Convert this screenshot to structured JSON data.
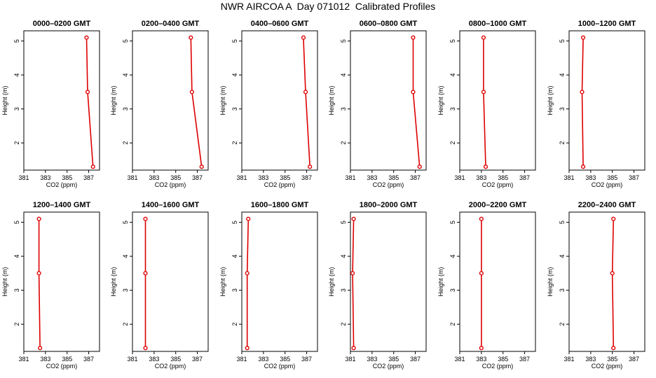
{
  "title": "NWR AIRCOA A  Day 071012  Calibrated Profiles",
  "colors": {
    "series": "#dd0000",
    "frame": "#000000"
  },
  "chart_data": [
    {
      "type": "line",
      "title": "0000–0200 GMT",
      "xlabel": "CO2 (ppm)",
      "ylabel": "Height (m)",
      "xlim": [
        381,
        388
      ],
      "ylim": [
        1.2,
        5.3
      ],
      "xticks": [
        "381",
        "383",
        "385",
        "387"
      ],
      "yticks": [
        "2",
        "3",
        "4",
        "5"
      ],
      "points": [
        {
          "x": 386.8,
          "y": 5.1
        },
        {
          "x": 386.9,
          "y": 3.5
        },
        {
          "x": 387.4,
          "y": 1.3
        }
      ]
    },
    {
      "type": "line",
      "title": "0200–0400 GMT",
      "xlabel": "CO2 (ppm)",
      "ylabel": "Height (m)",
      "xlim": [
        381,
        388
      ],
      "ylim": [
        1.2,
        5.3
      ],
      "xticks": [
        "381",
        "383",
        "385",
        "387"
      ],
      "yticks": [
        "2",
        "3",
        "4",
        "5"
      ],
      "points": [
        {
          "x": 386.4,
          "y": 5.1
        },
        {
          "x": 386.5,
          "y": 3.5
        },
        {
          "x": 387.4,
          "y": 1.3
        }
      ]
    },
    {
      "type": "line",
      "title": "0400–0600 GMT",
      "xlabel": "CO2 (ppm)",
      "ylabel": "Height (m)",
      "xlim": [
        381,
        388
      ],
      "ylim": [
        1.2,
        5.3
      ],
      "xticks": [
        "381",
        "383",
        "385",
        "387"
      ],
      "yticks": [
        "2",
        "3",
        "4",
        "5"
      ],
      "points": [
        {
          "x": 386.7,
          "y": 5.1
        },
        {
          "x": 386.9,
          "y": 3.5
        },
        {
          "x": 387.3,
          "y": 1.3
        }
      ]
    },
    {
      "type": "line",
      "title": "0600–0800 GMT",
      "xlabel": "CO2 (ppm)",
      "ylabel": "Height (m)",
      "xlim": [
        381,
        388
      ],
      "ylim": [
        1.2,
        5.3
      ],
      "xticks": [
        "381",
        "383",
        "385",
        "387"
      ],
      "yticks": [
        "2",
        "3",
        "4",
        "5"
      ],
      "points": [
        {
          "x": 386.8,
          "y": 5.1
        },
        {
          "x": 386.8,
          "y": 3.5
        },
        {
          "x": 387.4,
          "y": 1.3
        }
      ]
    },
    {
      "type": "line",
      "title": "0800–1000 GMT",
      "xlabel": "CO2 (ppm)",
      "ylabel": "Height (m)",
      "xlim": [
        381,
        388
      ],
      "ylim": [
        1.2,
        5.3
      ],
      "xticks": [
        "381",
        "383",
        "385",
        "387"
      ],
      "yticks": [
        "2",
        "3",
        "4",
        "5"
      ],
      "points": [
        {
          "x": 383.2,
          "y": 5.1
        },
        {
          "x": 383.2,
          "y": 3.5
        },
        {
          "x": 383.4,
          "y": 1.3
        }
      ]
    },
    {
      "type": "line",
      "title": "1000–1200 GMT",
      "xlabel": "CO2 (ppm)",
      "ylabel": "Height (m)",
      "xlim": [
        381,
        388
      ],
      "ylim": [
        1.2,
        5.3
      ],
      "xticks": [
        "381",
        "383",
        "385",
        "387"
      ],
      "yticks": [
        "2",
        "3",
        "4",
        "5"
      ],
      "points": [
        {
          "x": 382.3,
          "y": 5.1
        },
        {
          "x": 382.2,
          "y": 3.5
        },
        {
          "x": 382.3,
          "y": 1.3
        }
      ]
    },
    {
      "type": "line",
      "title": "1200–1400 GMT",
      "xlabel": "CO2 (ppm)",
      "ylabel": "Height (m)",
      "xlim": [
        381,
        388
      ],
      "ylim": [
        1.2,
        5.3
      ],
      "xticks": [
        "381",
        "383",
        "385",
        "387"
      ],
      "yticks": [
        "2",
        "3",
        "4",
        "5"
      ],
      "points": [
        {
          "x": 382.4,
          "y": 5.1
        },
        {
          "x": 382.4,
          "y": 3.5
        },
        {
          "x": 382.5,
          "y": 1.3
        }
      ]
    },
    {
      "type": "line",
      "title": "1400–1600 GMT",
      "xlabel": "CO2 (ppm)",
      "ylabel": "Height (m)",
      "xlim": [
        381,
        388
      ],
      "ylim": [
        1.2,
        5.3
      ],
      "xticks": [
        "381",
        "383",
        "385",
        "387"
      ],
      "yticks": [
        "2",
        "3",
        "4",
        "5"
      ],
      "points": [
        {
          "x": 382.2,
          "y": 5.1
        },
        {
          "x": 382.2,
          "y": 3.5
        },
        {
          "x": 382.2,
          "y": 1.3
        }
      ]
    },
    {
      "type": "line",
      "title": "1600–1800 GMT",
      "xlabel": "CO2 (ppm)",
      "ylabel": "Height (m)",
      "xlim": [
        381,
        388
      ],
      "ylim": [
        1.2,
        5.3
      ],
      "xticks": [
        "381",
        "383",
        "385",
        "387"
      ],
      "yticks": [
        "2",
        "3",
        "4",
        "5"
      ],
      "points": [
        {
          "x": 381.6,
          "y": 5.1
        },
        {
          "x": 381.5,
          "y": 3.5
        },
        {
          "x": 381.5,
          "y": 1.3
        }
      ]
    },
    {
      "type": "line",
      "title": "1800–2000 GMT",
      "xlabel": "CO2 (ppm)",
      "ylabel": "Height (m)",
      "xlim": [
        381,
        388
      ],
      "ylim": [
        1.2,
        5.3
      ],
      "xticks": [
        "381",
        "383",
        "385",
        "387"
      ],
      "yticks": [
        "2",
        "3",
        "4",
        "5"
      ],
      "points": [
        {
          "x": 381.3,
          "y": 5.1
        },
        {
          "x": 381.2,
          "y": 3.5
        },
        {
          "x": 381.3,
          "y": 1.3
        }
      ]
    },
    {
      "type": "line",
      "title": "2000–2200 GMT",
      "xlabel": "CO2 (ppm)",
      "ylabel": "Height (m)",
      "xlim": [
        381,
        388
      ],
      "ylim": [
        1.2,
        5.3
      ],
      "xticks": [
        "381",
        "383",
        "385",
        "387"
      ],
      "yticks": [
        "2",
        "3",
        "4",
        "5"
      ],
      "points": [
        {
          "x": 383.0,
          "y": 5.1
        },
        {
          "x": 383.0,
          "y": 3.5
        },
        {
          "x": 383.0,
          "y": 1.3
        }
      ]
    },
    {
      "type": "line",
      "title": "2200–2400 GMT",
      "xlabel": "CO2 (ppm)",
      "ylabel": "Height (m)",
      "xlim": [
        381,
        388
      ],
      "ylim": [
        1.2,
        5.3
      ],
      "xticks": [
        "381",
        "383",
        "385",
        "387"
      ],
      "yticks": [
        "2",
        "3",
        "4",
        "5"
      ],
      "points": [
        {
          "x": 385.1,
          "y": 5.1
        },
        {
          "x": 385.0,
          "y": 3.5
        },
        {
          "x": 385.1,
          "y": 1.3
        }
      ]
    }
  ]
}
